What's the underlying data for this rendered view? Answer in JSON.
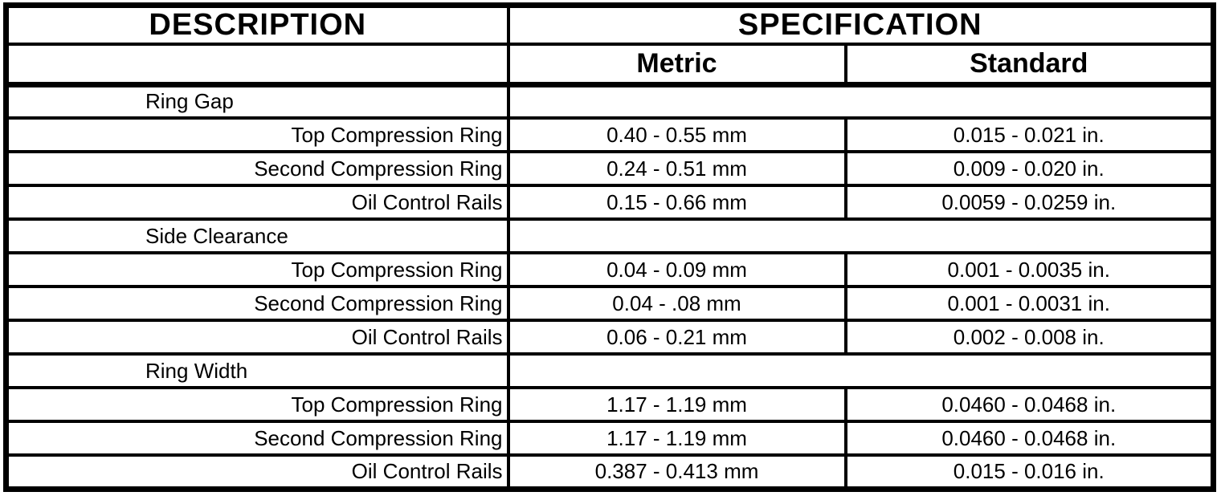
{
  "colors": {
    "ink": "#000000",
    "background": "#ffffff"
  },
  "table": {
    "header": {
      "description": "DESCRIPTION",
      "specification": "SPECIFICATION",
      "metric": "Metric",
      "standard": "Standard"
    },
    "sections": [
      {
        "category": "Ring Gap",
        "rows": [
          {
            "label": "Top Compression Ring",
            "metric": "0.40 - 0.55 mm",
            "standard": "0.015 - 0.021 in."
          },
          {
            "label": "Second Compression Ring",
            "metric": "0.24 - 0.51 mm",
            "standard": "0.009 - 0.020 in."
          },
          {
            "label": "Oil Control Rails",
            "metric": "0.15 - 0.66 mm",
            "standard": "0.0059 - 0.0259 in."
          }
        ]
      },
      {
        "category": "Side Clearance",
        "rows": [
          {
            "label": "Top Compression Ring",
            "metric": "0.04 - 0.09 mm",
            "standard": "0.001 - 0.0035 in."
          },
          {
            "label": "Second Compression Ring",
            "metric": "0.04 - .08 mm",
            "standard": "0.001 - 0.0031 in."
          },
          {
            "label": "Oil Control Rails",
            "metric": "0.06 - 0.21 mm",
            "standard": "0.002 - 0.008 in."
          }
        ]
      },
      {
        "category": "Ring Width",
        "rows": [
          {
            "label": "Top Compression Ring",
            "metric": "1.17 - 1.19 mm",
            "standard": "0.0460 - 0.0468 in."
          },
          {
            "label": "Second Compression Ring",
            "metric": "1.17 - 1.19 mm",
            "standard": "0.0460 - 0.0468 in."
          },
          {
            "label": "Oil Control Rails",
            "metric": "0.387 - 0.413 mm",
            "standard": "0.015 - 0.016 in."
          }
        ]
      }
    ]
  }
}
